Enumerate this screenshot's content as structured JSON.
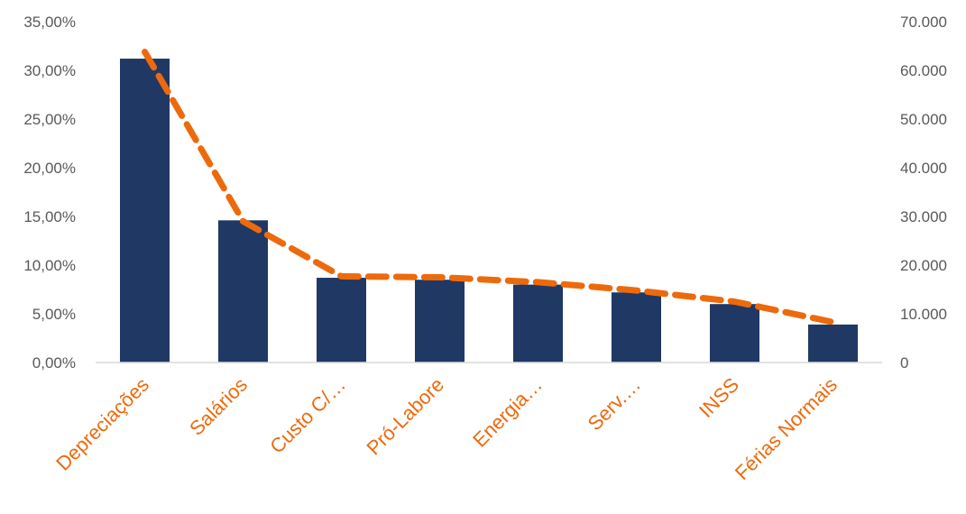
{
  "chart_data": {
    "type": "bar",
    "categories": [
      "Depreciações",
      "Salários",
      "Custo C/…",
      "Pró-Labore",
      "Energia…",
      "Serv.…",
      "INSS",
      "Férias Normais"
    ],
    "series": [
      {
        "type": "bar",
        "axis": "left",
        "values": [
          0.312,
          0.146,
          0.087,
          0.085,
          0.08,
          0.072,
          0.06,
          0.039
        ]
      },
      {
        "type": "line",
        "axis": "right",
        "style": "dashed",
        "values": [
          63800,
          29000,
          17700,
          17500,
          16500,
          14800,
          12500,
          8300
        ]
      }
    ],
    "y_left": {
      "min": 0,
      "max": 0.35,
      "step": 0.05,
      "tick_labels": [
        "0,00%",
        "5,00%",
        "10,00%",
        "15,00%",
        "20,00%",
        "25,00%",
        "30,00%",
        "35,00%"
      ]
    },
    "y_right": {
      "min": 0,
      "max": 70000,
      "step": 10000,
      "tick_labels": [
        "0",
        "10.000",
        "20.000",
        "30.000",
        "40.000",
        "50.000",
        "60.000",
        "70.000"
      ]
    },
    "grid": false,
    "legend": "none"
  },
  "colors": {
    "bar": "#203864",
    "line": "#ED6A0C",
    "category_label": "#ED6A0C",
    "axis": "#D9D9D9",
    "tick_text": "#595959"
  }
}
